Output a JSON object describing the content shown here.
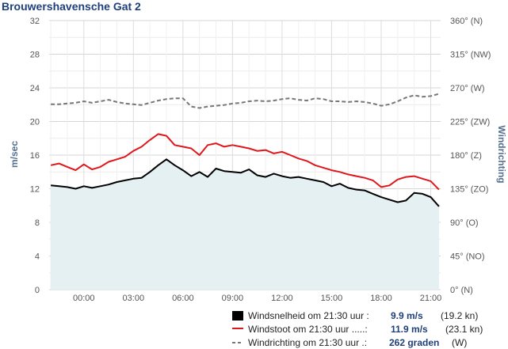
{
  "chart_data": {
    "type": "line",
    "title": "Brouwershavensche Gat 2",
    "ylabel": "m/sec",
    "y2label": "Windrichting",
    "ylim": [
      0,
      32
    ],
    "yticks": [
      0,
      4,
      8,
      12,
      16,
      20,
      24,
      28,
      32
    ],
    "y2ticks": [
      "0° (N)",
      "45° (NO)",
      "90° (O)",
      "135° (ZO)",
      "180° (Z)",
      "225° (ZW)",
      "270° (W)",
      "315° (NW)",
      "360° (N)"
    ],
    "y2lim": [
      0,
      360
    ],
    "xlim": [
      -2.1,
      21.6
    ],
    "xticks": [
      {
        "x": 0,
        "label": "00:00"
      },
      {
        "x": 3,
        "label": "03:00"
      },
      {
        "x": 6,
        "label": "06:00"
      },
      {
        "x": 9,
        "label": "09:00"
      },
      {
        "x": 12,
        "label": "12:00"
      },
      {
        "x": 15,
        "label": "15:00"
      },
      {
        "x": 18,
        "label": "18:00"
      },
      {
        "x": 21,
        "label": "21:00"
      }
    ],
    "grid": true,
    "series": [
      {
        "name": "Windsnelheid",
        "color": "#000000",
        "area_color": "#e5f0f2",
        "x": [
          -2.0,
          -1.5,
          -1.0,
          -0.5,
          0.0,
          0.5,
          1.0,
          1.5,
          2.0,
          2.5,
          3.0,
          3.5,
          4.0,
          4.5,
          5.0,
          5.5,
          6.0,
          6.5,
          7.0,
          7.5,
          8.0,
          8.5,
          9.0,
          9.5,
          10.0,
          10.5,
          11.0,
          11.5,
          12.0,
          12.5,
          13.0,
          13.5,
          14.0,
          14.5,
          15.0,
          15.5,
          16.0,
          16.5,
          17.0,
          17.5,
          18.0,
          18.5,
          19.0,
          19.5,
          20.0,
          20.5,
          21.0,
          21.5
        ],
        "values": [
          12.4,
          12.3,
          12.2,
          12.0,
          12.3,
          12.1,
          12.3,
          12.5,
          12.8,
          13.0,
          13.2,
          13.3,
          14.0,
          14.8,
          15.5,
          14.8,
          14.2,
          13.5,
          14.0,
          13.4,
          14.4,
          14.1,
          14.0,
          13.9,
          14.3,
          13.6,
          13.4,
          13.8,
          13.5,
          13.3,
          13.4,
          13.2,
          13.0,
          12.8,
          12.3,
          12.6,
          12.1,
          11.9,
          11.8,
          11.4,
          11.0,
          10.7,
          10.4,
          10.6,
          11.5,
          11.4,
          11.0,
          9.9
        ]
      },
      {
        "name": "Windstoot",
        "color": "#e0161b",
        "x": [
          -2.0,
          -1.5,
          -1.0,
          -0.5,
          0.0,
          0.5,
          1.0,
          1.5,
          2.0,
          2.5,
          3.0,
          3.5,
          4.0,
          4.5,
          5.0,
          5.5,
          6.0,
          6.5,
          7.0,
          7.5,
          8.0,
          8.5,
          9.0,
          9.5,
          10.0,
          10.5,
          11.0,
          11.5,
          12.0,
          12.5,
          13.0,
          13.5,
          14.0,
          14.5,
          15.0,
          15.5,
          16.0,
          16.5,
          17.0,
          17.5,
          18.0,
          18.5,
          19.0,
          19.5,
          20.0,
          20.5,
          21.0,
          21.5
        ],
        "values": [
          14.8,
          15.0,
          14.6,
          14.2,
          14.9,
          14.3,
          14.6,
          15.2,
          15.5,
          15.8,
          16.5,
          17.0,
          17.8,
          18.5,
          18.3,
          17.2,
          17.0,
          16.8,
          16.0,
          17.2,
          17.4,
          17.0,
          17.2,
          17.0,
          16.8,
          16.5,
          16.6,
          16.2,
          16.4,
          16.0,
          15.6,
          15.3,
          14.8,
          14.5,
          14.2,
          14.0,
          13.7,
          13.5,
          13.3,
          13.0,
          12.2,
          12.4,
          13.1,
          13.4,
          13.5,
          13.2,
          12.9,
          11.9
        ]
      },
      {
        "name": "Windrichting",
        "color": "#777777",
        "dashed": true,
        "axis": "right",
        "x": [
          -2.0,
          -1.5,
          -1.0,
          -0.5,
          0.0,
          0.5,
          1.0,
          1.5,
          2.0,
          2.5,
          3.0,
          3.5,
          4.0,
          4.5,
          5.0,
          5.5,
          6.0,
          6.5,
          7.0,
          7.5,
          8.0,
          8.5,
          9.0,
          9.5,
          10.0,
          10.5,
          11.0,
          11.5,
          12.0,
          12.5,
          13.0,
          13.5,
          14.0,
          14.5,
          15.0,
          15.5,
          16.0,
          16.5,
          17.0,
          17.5,
          18.0,
          18.5,
          19.0,
          19.5,
          20.0,
          20.5,
          21.0,
          21.5
        ],
        "values": [
          248,
          248,
          249,
          250,
          252,
          250,
          252,
          254,
          251,
          249,
          248,
          247,
          250,
          253,
          255,
          256,
          256,
          245,
          243,
          245,
          246,
          247,
          249,
          250,
          252,
          253,
          252,
          253,
          255,
          256,
          254,
          253,
          256,
          255,
          252,
          252,
          251,
          252,
          251,
          249,
          246,
          248,
          252,
          257,
          260,
          258,
          259,
          262
        ]
      }
    ],
    "legend": {
      "position": "bottom-right",
      "rows": [
        {
          "label": "Windsnelheid om 21:30 uur :",
          "value": "9.9 m/s",
          "extra": "(19.2 kn)"
        },
        {
          "label": "Windstoot om 21:30 uur .....:",
          "value": "11.9 m/s",
          "extra": "(23.1 kn)"
        },
        {
          "label": "Windrichting om 21:30 uur .:",
          "value": "262 graden",
          "extra": "(W)"
        }
      ]
    }
  }
}
